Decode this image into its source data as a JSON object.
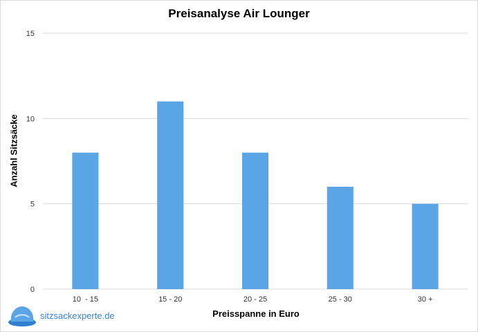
{
  "chart_data": {
    "type": "bar",
    "title": "Preisanalyse Air Lounger",
    "xlabel": "Preisspanne in Euro",
    "ylabel": "Anzahl Sitzsäcke",
    "categories": [
      "10  - 15",
      "15 - 20",
      "20 - 25",
      "25 - 30",
      "30 +"
    ],
    "values": [
      8,
      11,
      8,
      6,
      5
    ],
    "ylim": [
      0,
      15
    ],
    "yticks": [
      0,
      5,
      10,
      15
    ],
    "grid": true,
    "bar_color": "#5aa5e6",
    "grid_color": "#d9d9d9"
  },
  "watermark": {
    "text": "sitzsackexperte.de",
    "icon": "beanbag-logo-icon",
    "color": "#3a86d6"
  }
}
